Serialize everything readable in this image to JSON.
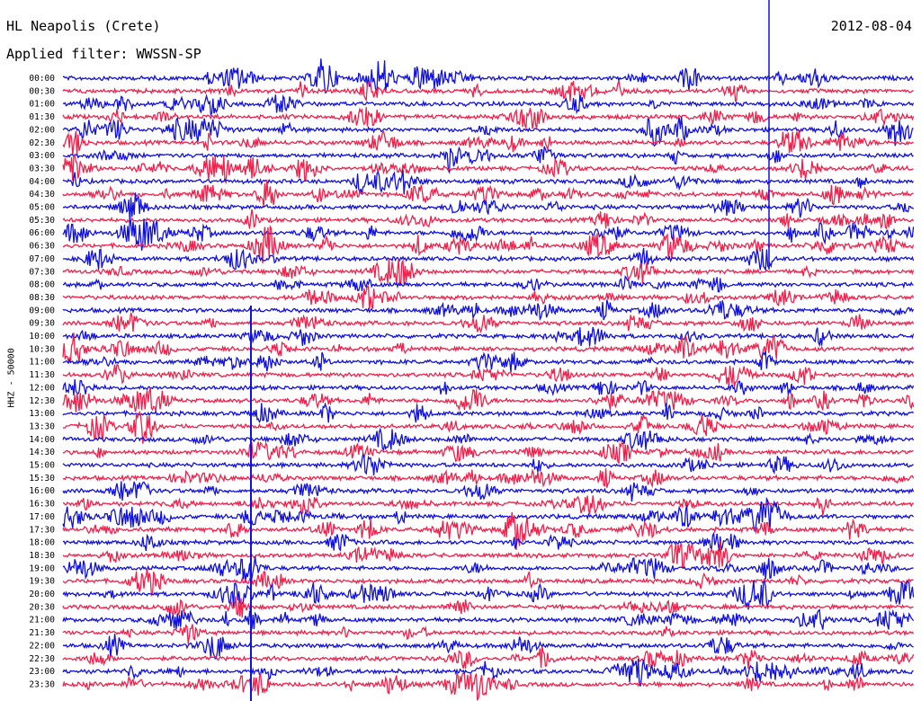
{
  "header": {
    "station": "HL Neapolis (Crete)",
    "date": "2012-08-04",
    "filter": "Applied filter: WWSSN-SP"
  },
  "chart_data": {
    "type": "line",
    "description_kind": "helicorder",
    "channel_label": "HHZ - 50000",
    "rows": [
      "00:00",
      "00:30",
      "01:00",
      "01:30",
      "02:00",
      "02:30",
      "03:00",
      "03:30",
      "04:00",
      "04:30",
      "05:00",
      "05:30",
      "06:00",
      "06:30",
      "07:00",
      "07:30",
      "08:00",
      "08:30",
      "09:00",
      "09:30",
      "10:00",
      "10:30",
      "11:00",
      "11:30",
      "12:00",
      "12:30",
      "13:00",
      "13:30",
      "14:00",
      "14:30",
      "15:00",
      "15:30",
      "16:00",
      "16:30",
      "17:00",
      "17:30",
      "18:00",
      "18:30",
      "19:00",
      "19:30",
      "20:00",
      "20:30",
      "21:00",
      "21:30",
      "22:00",
      "22:30",
      "23:00",
      "23:30"
    ],
    "colors": {
      "even": "#1010e0",
      "odd": "#f0204a"
    }
  }
}
